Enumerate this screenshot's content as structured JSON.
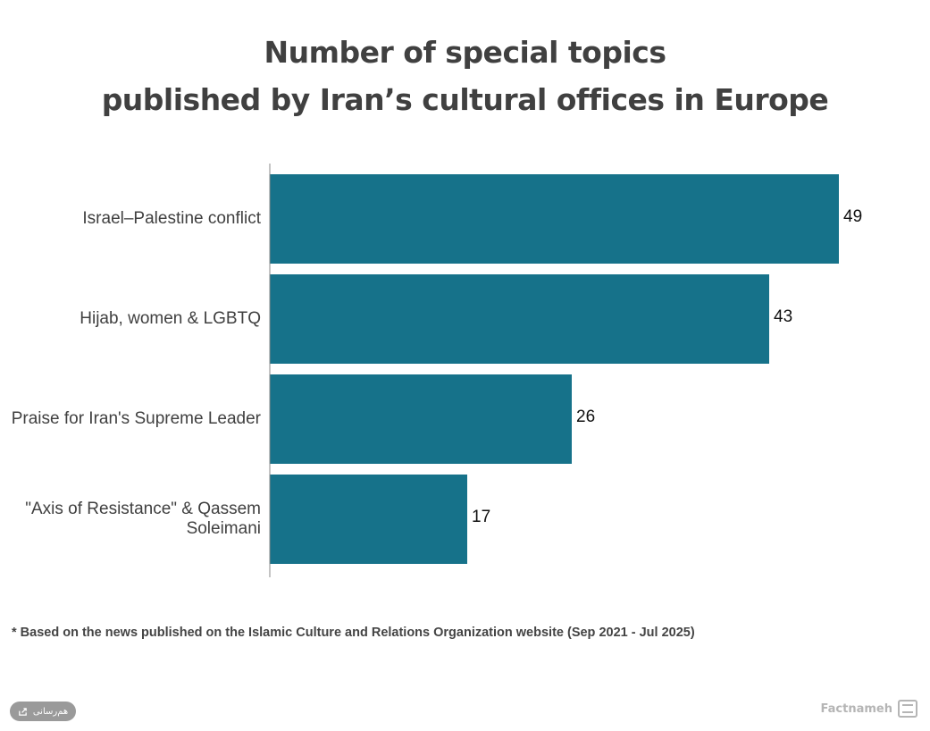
{
  "chart_data": {
    "type": "bar",
    "orientation": "horizontal",
    "title": "Number of special topics published by Iran’s cultural offices in Europe",
    "title_lines": [
      "Number of special topics",
      "published by Iran’s cultural offices in Europe"
    ],
    "categories": [
      "Israel–Palestine conflict",
      "Hijab, women & LGBTQ",
      "Praise for Iran's Supreme Leader",
      "\"Axis of Resistance\" & Qassem Soleimani"
    ],
    "category_lines": [
      [
        "Israel–Palestine conflict"
      ],
      [
        "Hijab, women & LGBTQ"
      ],
      [
        "Praise for Iran's Supreme Leader"
      ],
      [
        "\"Axis of Resistance\" & Qassem",
        "Soleimani"
      ]
    ],
    "values": [
      49,
      43,
      26,
      17
    ],
    "data_labels": [
      "49",
      "43",
      "26",
      "17"
    ],
    "xlim": [
      0,
      49
    ],
    "xlabel": "",
    "ylabel": "",
    "grid": false,
    "legend": "none",
    "bar_color": "#16728a"
  },
  "footnote": "* Based on the news published on the Islamic Culture and Relations Organization website (Sep 2021 - Jul 2025)",
  "share_label": "هم‌رسانی",
  "brand_name": "Factnameh",
  "colors": {
    "bar": "#16728a",
    "title": "#404040",
    "axis": "#888888"
  }
}
